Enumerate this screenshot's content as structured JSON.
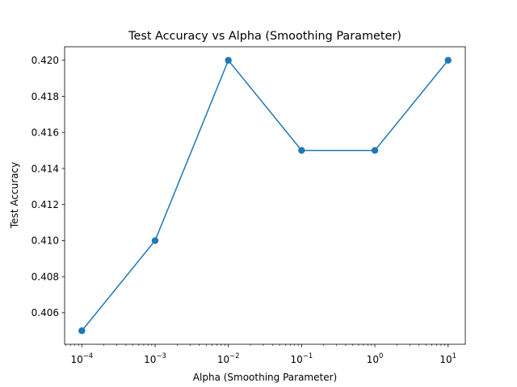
{
  "chart_data": {
    "type": "line",
    "title": "Test Accuracy vs Alpha (Smoothing Parameter)",
    "xlabel": "Alpha (Smoothing Parameter)",
    "ylabel": "Test Accuracy",
    "xscale": "log",
    "x": [
      0.0001,
      0.001,
      0.01,
      0.1,
      1,
      10
    ],
    "series": [
      {
        "values": [
          0.405,
          0.41,
          0.42,
          0.415,
          0.415,
          0.42
        ],
        "color": "#1f77b4",
        "marker": "circle"
      }
    ],
    "xticks": [
      {
        "base": "10",
        "exp": "−4"
      },
      {
        "base": "10",
        "exp": "−3"
      },
      {
        "base": "10",
        "exp": "−2"
      },
      {
        "base": "10",
        "exp": "−1"
      },
      {
        "base": "10",
        "exp": "0"
      },
      {
        "base": "10",
        "exp": "1"
      }
    ],
    "yticks": [
      "0.406",
      "0.408",
      "0.410",
      "0.412",
      "0.414",
      "0.416",
      "0.418",
      "0.420"
    ],
    "ytick_values": [
      0.406,
      0.408,
      0.41,
      0.412,
      0.414,
      0.416,
      0.418,
      0.42
    ],
    "xlim": [
      5.82e-05,
      17.17
    ],
    "ylim": [
      0.40425,
      0.42075
    ],
    "grid": false,
    "legend": "none"
  }
}
